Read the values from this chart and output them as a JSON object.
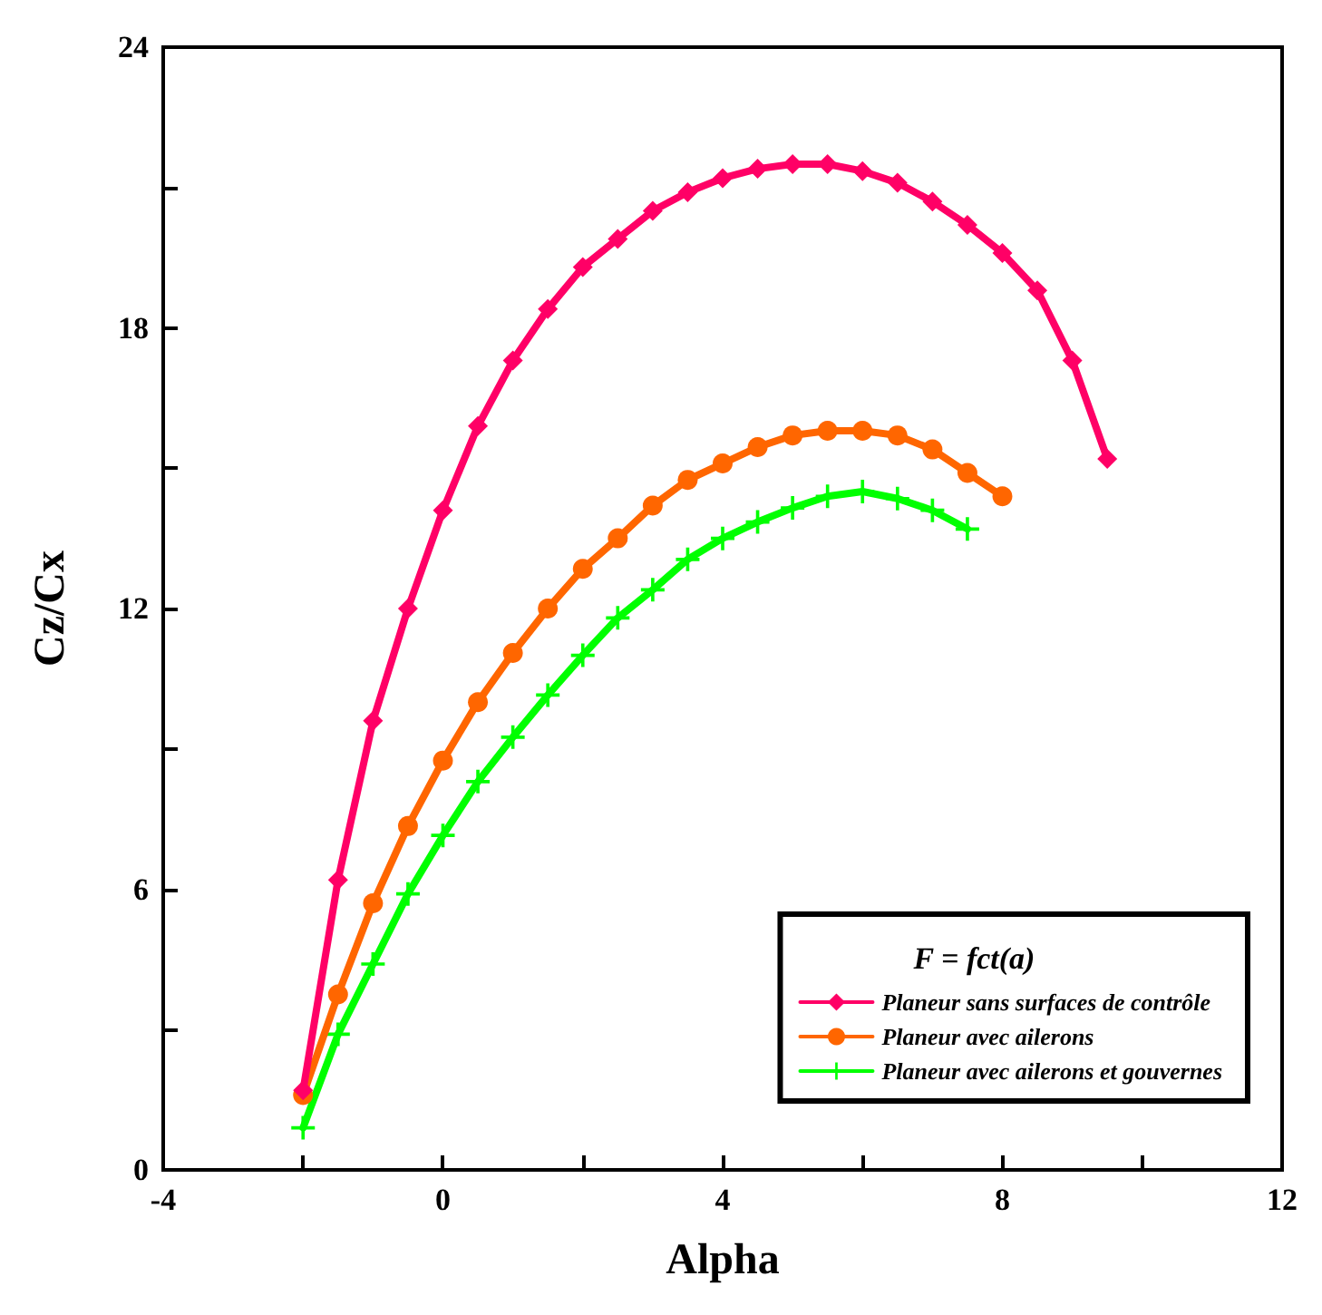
{
  "chart_data": {
    "type": "line",
    "xlabel": "Alpha",
    "ylabel": "Cz/Cx",
    "legend_title": "F = fct(a)",
    "legend": "bottom right",
    "xlim": [
      -4,
      12
    ],
    "xticks": [
      -4,
      {
        "value": -2,
        "label": null
      },
      0,
      {
        "value": 2,
        "label": null
      },
      4,
      {
        "value": 6,
        "label": null
      },
      8,
      {
        "value": 10,
        "label": null
      },
      12
    ],
    "ylim": [
      0,
      24
    ],
    "yticks": [
      0,
      {
        "value": 3,
        "label": null
      },
      6,
      {
        "value": 9,
        "label": null
      },
      12,
      {
        "value": 15,
        "label": null
      },
      18,
      {
        "value": 21,
        "label": null
      },
      24
    ],
    "series": [
      {
        "name": "Planeur sans surfaces de contrôle",
        "color": "#ff0066",
        "marker": "diamond",
        "x": [
          -2,
          -1.5,
          -1,
          -0.5,
          0,
          0.5,
          1,
          1.5,
          2,
          2.5,
          3,
          3.5,
          4,
          4.5,
          5,
          5.5,
          6,
          6.5,
          7,
          7.5,
          8,
          8.5,
          9,
          9.5
        ],
        "values": [
          1.7,
          6.2,
          9.6,
          12.0,
          14.1,
          15.9,
          17.3,
          18.4,
          19.3,
          19.9,
          20.5,
          20.9,
          21.2,
          21.4,
          21.5,
          21.5,
          21.35,
          21.1,
          20.7,
          20.2,
          19.6,
          18.8,
          17.3,
          15.2
        ]
      },
      {
        "name": "Planeur avec ailerons",
        "color": "#ff6600",
        "marker": "circle",
        "x": [
          -2,
          -1.5,
          -1,
          -0.5,
          0,
          0.5,
          1,
          1.5,
          2,
          2.5,
          3,
          3.5,
          4,
          4.5,
          5,
          5.5,
          6,
          6.5,
          7,
          7.5,
          8
        ],
        "values": [
          1.6,
          3.75,
          5.7,
          7.35,
          8.75,
          10.0,
          11.05,
          12.0,
          12.85,
          13.5,
          14.2,
          14.75,
          15.1,
          15.45,
          15.7,
          15.8,
          15.8,
          15.7,
          15.4,
          14.9,
          14.4
        ]
      },
      {
        "name": "Planeur avec ailerons et gouvernes",
        "color": "#00ff00",
        "marker": "cross",
        "x": [
          -2,
          -1.5,
          -1,
          -0.5,
          0,
          0.5,
          1,
          1.5,
          2,
          2.5,
          3,
          3.5,
          4,
          4.5,
          5,
          5.5,
          6,
          6.5,
          7,
          7.5
        ],
        "values": [
          0.9,
          2.9,
          4.4,
          5.9,
          7.15,
          8.3,
          9.25,
          10.15,
          11.0,
          11.8,
          12.4,
          13.05,
          13.5,
          13.85,
          14.15,
          14.4,
          14.5,
          14.35,
          14.1,
          13.7
        ]
      }
    ]
  }
}
